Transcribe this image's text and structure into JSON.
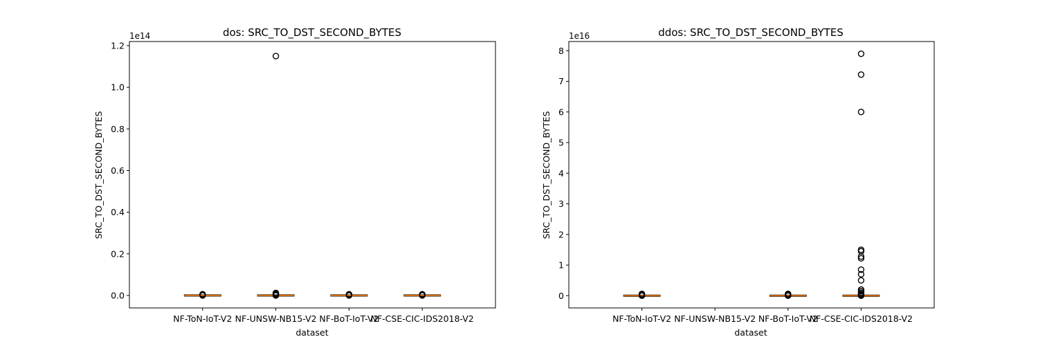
{
  "chart_data": [
    {
      "type": "box",
      "title": "dos: SRC_TO_DST_SECOND_BYTES",
      "xlabel": "dataset",
      "ylabel": "SRC_TO_DST_SECOND_BYTES",
      "offset_label": "1e14",
      "categories": [
        "NF-ToN-IoT-V2",
        "NF-UNSW-NB15-V2",
        "NF-BoT-IoT-V2",
        "NF-CSE-CIC-IDS2018-V2"
      ],
      "ylim": [
        -0.06,
        1.22
      ],
      "yticks": [
        0.0,
        0.2,
        0.4,
        0.6,
        0.8,
        1.0,
        1.2
      ],
      "ytick_labels": [
        "0.0",
        "0.2",
        "0.4",
        "0.6",
        "0.8",
        "1.0",
        "1.2"
      ],
      "boxes": [
        {
          "category": "NF-ToN-IoT-V2",
          "present": true,
          "median": 0,
          "outliers": [
            0.0,
            0.003,
            0.006
          ]
        },
        {
          "category": "NF-UNSW-NB15-V2",
          "present": true,
          "median": 0,
          "outliers": [
            0.0,
            0.004,
            0.008,
            0.012,
            1.15
          ]
        },
        {
          "category": "NF-BoT-IoT-V2",
          "present": true,
          "median": 0,
          "outliers": [
            0.0,
            0.003,
            0.006
          ]
        },
        {
          "category": "NF-CSE-CIC-IDS2018-V2",
          "present": true,
          "median": 0,
          "outliers": [
            0.0,
            0.003,
            0.006
          ]
        }
      ],
      "grid": false,
      "colors": {
        "median": "#ff7f0e",
        "box": "#000000",
        "flier": "#000000"
      }
    },
    {
      "type": "box",
      "title": "ddos: SRC_TO_DST_SECOND_BYTES",
      "xlabel": "dataset",
      "ylabel": "SRC_TO_DST_SECOND_BYTES",
      "offset_label": "1e16",
      "categories": [
        "NF-ToN-IoT-V2",
        "NF-UNSW-NB15-V2",
        "NF-BoT-IoT-V2",
        "NF-CSE-CIC-IDS2018-V2"
      ],
      "ylim": [
        -0.4,
        8.3
      ],
      "yticks": [
        0,
        1,
        2,
        3,
        4,
        5,
        6,
        7,
        8
      ],
      "ytick_labels": [
        "0",
        "1",
        "2",
        "3",
        "4",
        "5",
        "6",
        "7",
        "8"
      ],
      "boxes": [
        {
          "category": "NF-ToN-IoT-V2",
          "present": true,
          "median": 0,
          "outliers": [
            0.0,
            0.03,
            0.06
          ]
        },
        {
          "category": "NF-UNSW-NB15-V2",
          "present": false,
          "median": null,
          "outliers": []
        },
        {
          "category": "NF-BoT-IoT-V2",
          "present": true,
          "median": 0,
          "outliers": [
            0.0,
            0.03,
            0.06
          ]
        },
        {
          "category": "NF-CSE-CIC-IDS2018-V2",
          "present": true,
          "median": 0,
          "outliers": [
            0.0,
            0.03,
            0.06,
            0.1,
            0.15,
            0.2,
            0.5,
            0.7,
            0.85,
            1.22,
            1.28,
            1.45,
            1.5,
            6.0,
            7.22,
            7.9
          ]
        }
      ],
      "grid": false,
      "colors": {
        "median": "#ff7f0e",
        "box": "#000000",
        "flier": "#000000"
      }
    }
  ]
}
